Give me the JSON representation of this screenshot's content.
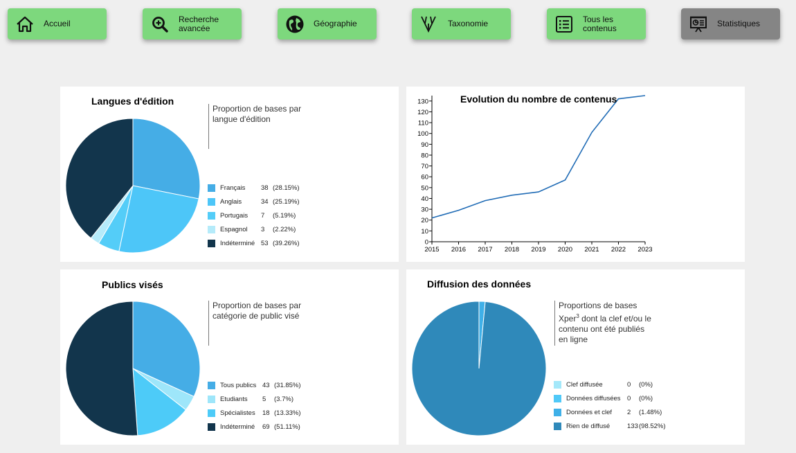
{
  "nav": [
    {
      "label": "Accueil",
      "icon": "home-icon"
    },
    {
      "label": "Recherche\navancée",
      "icon": "search-plus-icon"
    },
    {
      "label": "Géographie",
      "icon": "globe-icon"
    },
    {
      "label": "Taxonomie",
      "icon": "taxonomy-icon"
    },
    {
      "label": "Tous les\ncontenus",
      "icon": "list-icon"
    },
    {
      "label": "Statistiques",
      "icon": "presentation-chart-icon",
      "active": true
    }
  ],
  "colors": {
    "nav_green": "#7dd87d",
    "nav_active": "#858585",
    "line": "#1f6bb5"
  },
  "panels": {
    "langues": {
      "title": "Langues d'édition",
      "description": "Proportion de bases par langue d'édition"
    },
    "evolution": {
      "title": "Evolution du nombre de contenus"
    },
    "publics": {
      "title": "Publics visés",
      "description": "Proportion de bases par catégorie de public visé"
    },
    "diffusion": {
      "title": "Diffusion des données",
      "description_line1": "Proportions de bases",
      "description_xper": "Xper",
      "description_sup": "3",
      "description_line2": " dont la clef et/ou le",
      "description_line3": "contenu ont été publiés",
      "description_line4": "en ligne"
    }
  },
  "chart_data": [
    {
      "type": "pie",
      "title": "Langues d'édition",
      "slices": [
        {
          "label": "Français",
          "count": "38",
          "pct": "(28.15%)",
          "value": 38,
          "color": "#45ade6"
        },
        {
          "label": "Anglais",
          "count": "34",
          "pct": "(25.19%)",
          "value": 34,
          "color": "#4dc6f8"
        },
        {
          "label": "Portugais",
          "count": "7",
          "pct": "(5.19%)",
          "value": 7,
          "color": "#54cdf8"
        },
        {
          "label": "Espagnol",
          "count": "3",
          "pct": "(2.22%)",
          "value": 3,
          "color": "#b5ebfa"
        },
        {
          "label": "Indéterminé",
          "count": "53",
          "pct": "(39.26%)",
          "value": 53,
          "color": "#12354c"
        }
      ]
    },
    {
      "type": "line",
      "title": "Evolution du nombre de contenus",
      "x": [
        "2015",
        "2016",
        "2017",
        "2018",
        "2019",
        "2020",
        "2021",
        "2022",
        "2023"
      ],
      "values": [
        22,
        29,
        38,
        43,
        46,
        57,
        101,
        132,
        135
      ],
      "ylim": [
        0,
        135
      ],
      "yticks": [
        0,
        10,
        20,
        30,
        40,
        50,
        60,
        70,
        80,
        90,
        100,
        110,
        120,
        130
      ]
    },
    {
      "type": "pie",
      "title": "Publics visés",
      "slices": [
        {
          "label": "Tous publics",
          "count": "43",
          "pct": "(31.85%)",
          "value": 43,
          "color": "#45ade6"
        },
        {
          "label": "Etudiants",
          "count": "5",
          "pct": "(3.7%)",
          "value": 5,
          "color": "#9ee6fa"
        },
        {
          "label": "Spécialistes",
          "count": "18",
          "pct": "(13.33%)",
          "value": 18,
          "color": "#4dcbf8"
        },
        {
          "label": "Indéterminé",
          "count": "69",
          "pct": "(51.11%)",
          "value": 69,
          "color": "#12354c"
        }
      ]
    },
    {
      "type": "pie",
      "title": "Diffusion des données",
      "slices": [
        {
          "label": "Clef diffusée",
          "count": "0",
          "pct": "(0%)",
          "value": 0,
          "color": "#a4e8fa"
        },
        {
          "label": "Données diffusées",
          "count": "0",
          "pct": "(0%)",
          "value": 0,
          "color": "#50c9f8"
        },
        {
          "label": "Données et clef",
          "count": "2",
          "pct": "(1.48%)",
          "value": 2,
          "color": "#3fb0e8"
        },
        {
          "label": "Rien de diffusé",
          "count": "133",
          "pct": "(98.52%)",
          "value": 133,
          "color": "#2f89ba"
        }
      ]
    }
  ]
}
